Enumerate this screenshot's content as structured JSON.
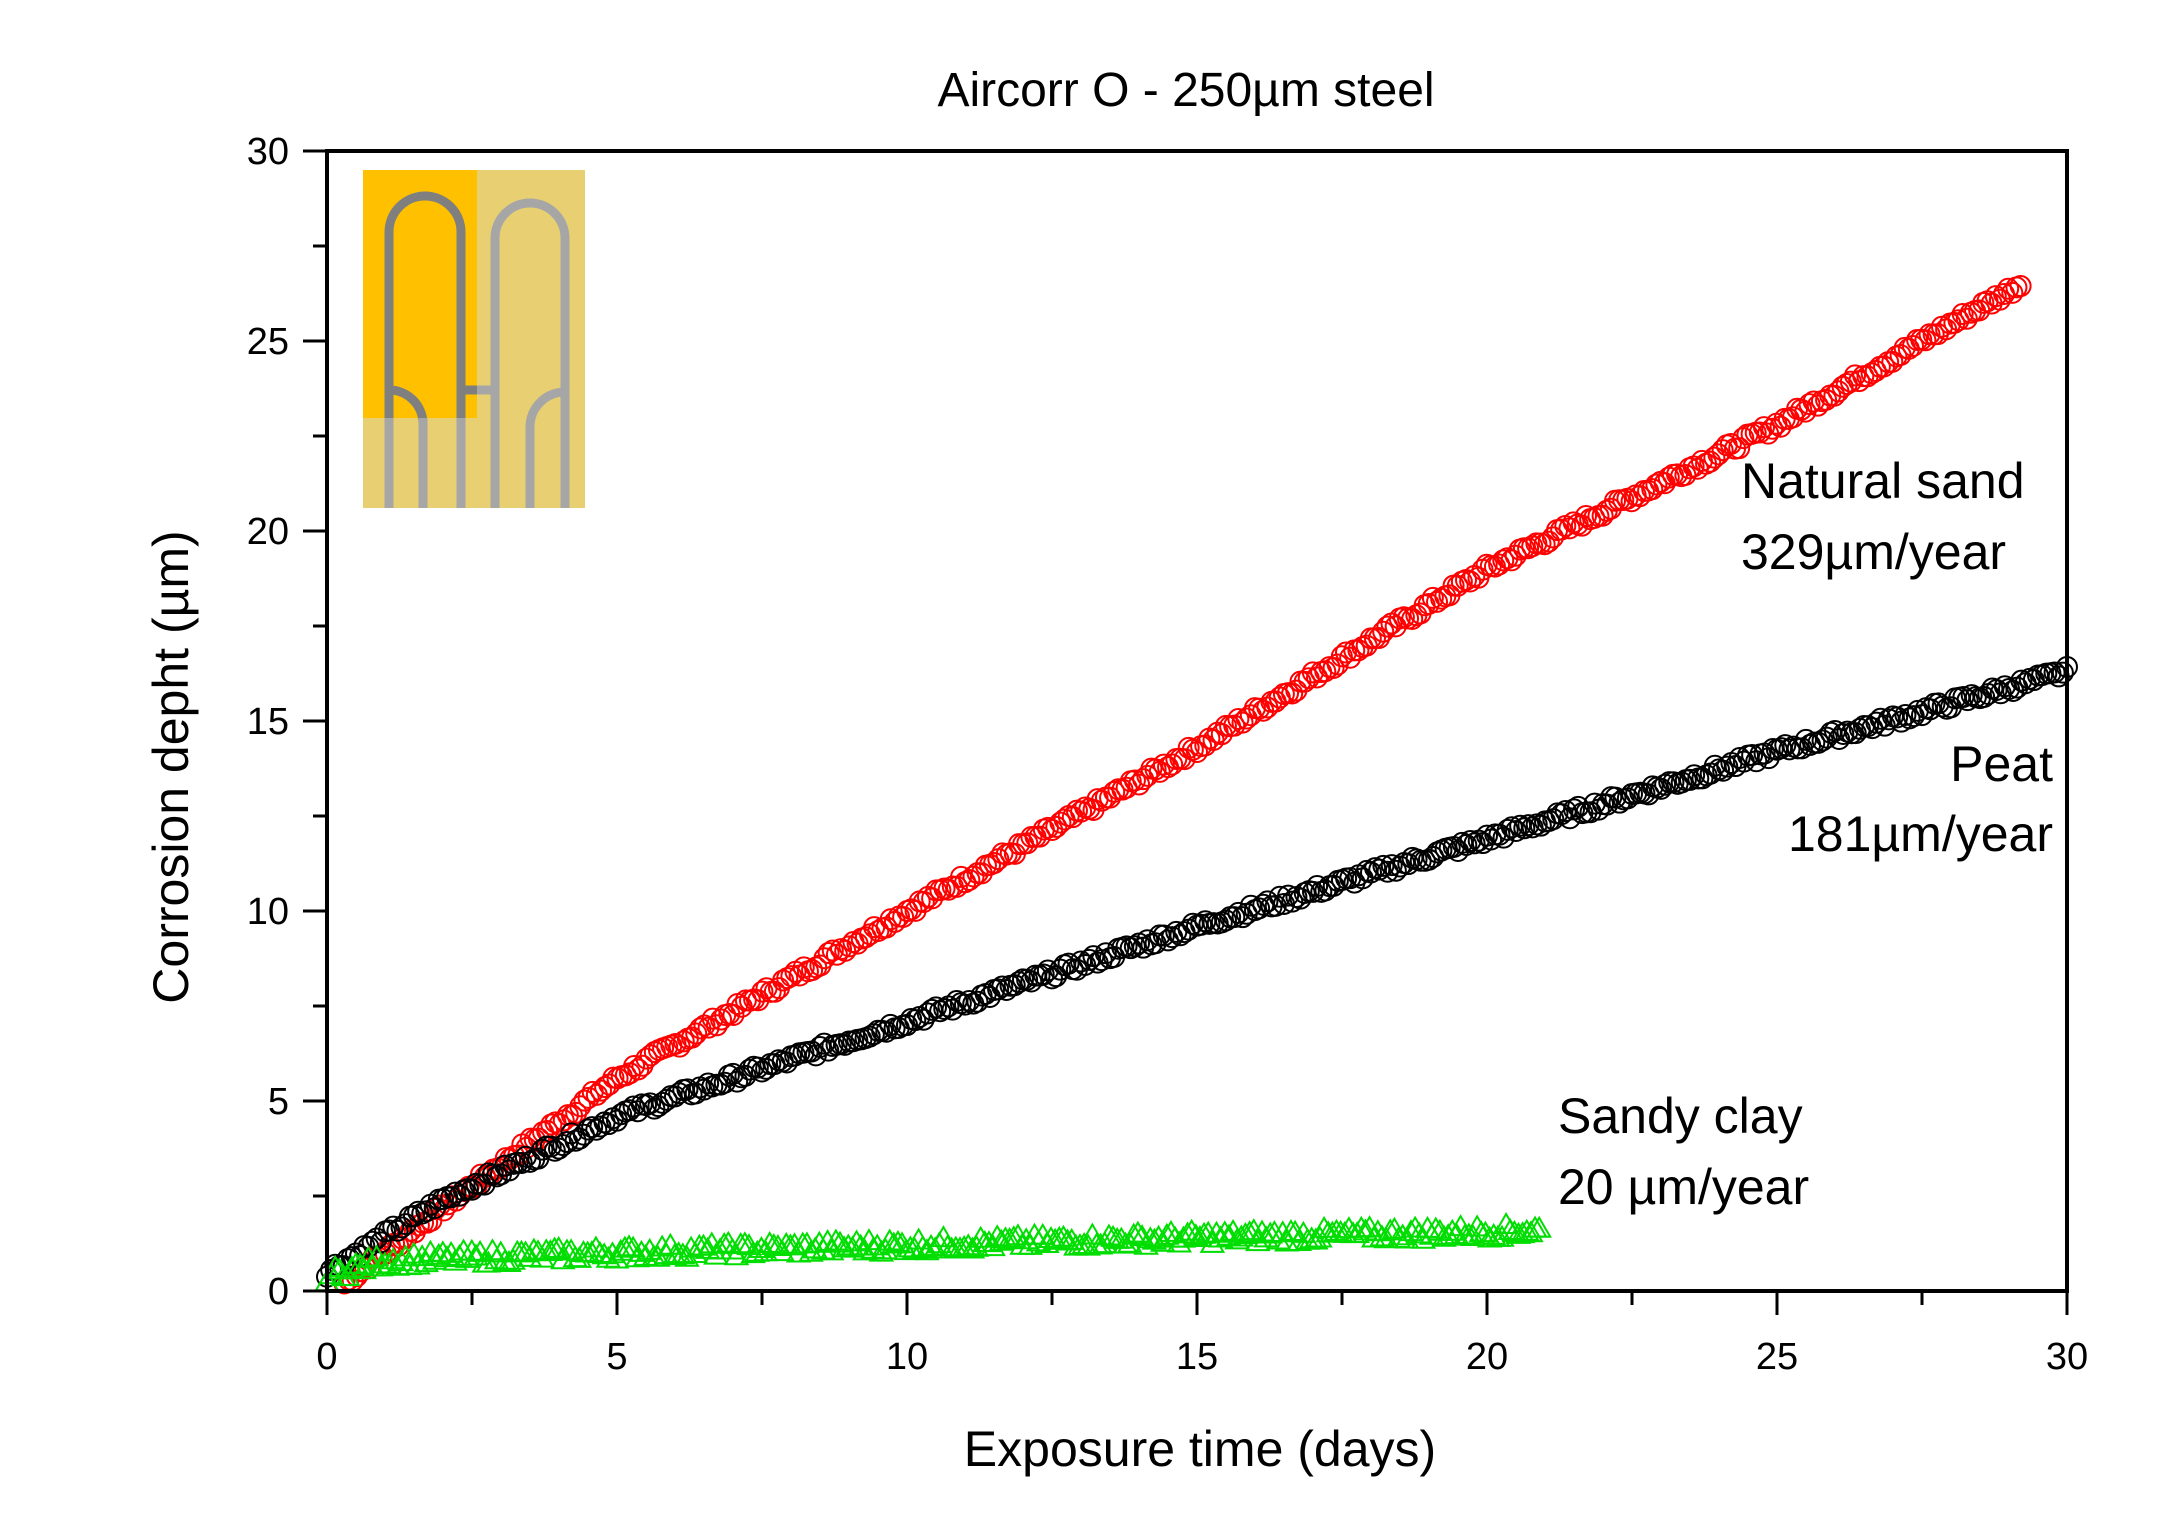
{
  "chart_data": {
    "type": "scatter",
    "title": "Aircorr O - 250µm steel",
    "xlabel": "Exposure time (days)",
    "ylabel": "Corrosion depht (µm)",
    "xlim": [
      0,
      30
    ],
    "ylim": [
      0,
      30
    ],
    "xticks": [
      0,
      5,
      10,
      15,
      20,
      25,
      30
    ],
    "yticks": [
      0,
      5,
      10,
      15,
      20,
      25,
      30
    ],
    "grid": false,
    "series": [
      {
        "name": "Natural sand",
        "rate": "329µm/year",
        "color": "#ff0000",
        "marker": "circle",
        "x": [
          0.3,
          2,
          5,
          10,
          15,
          20,
          25,
          29.2
        ],
        "y": [
          0.2,
          2.2,
          5.6,
          10.0,
          14.3,
          19.0,
          22.8,
          26.5
        ]
      },
      {
        "name": "Peat",
        "rate": "181µm/year",
        "color": "#000000",
        "marker": "circle",
        "x": [
          0,
          2,
          5,
          10,
          15,
          20,
          25,
          30
        ],
        "y": [
          0.5,
          2.4,
          4.6,
          7.1,
          9.6,
          11.9,
          14.2,
          16.3
        ]
      },
      {
        "name": "Sandy clay",
        "rate": "20 µm/year",
        "color": "#00dd00",
        "marker": "triangle",
        "x": [
          0,
          1,
          5,
          10,
          15,
          20,
          20.9
        ],
        "y": [
          0.4,
          0.8,
          1.0,
          1.2,
          1.4,
          1.55,
          1.6
        ]
      }
    ]
  }
}
